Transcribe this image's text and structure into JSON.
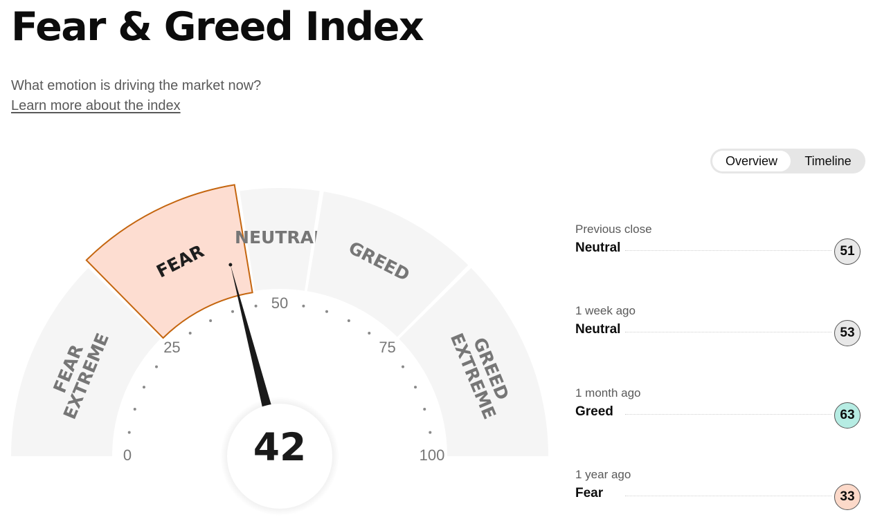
{
  "header": {
    "title": "Fear & Greed Index",
    "subtitle": "What emotion is driving the market now?",
    "learn_more": "Learn more about the index"
  },
  "tabs": [
    {
      "label": "Overview",
      "active": true
    },
    {
      "label": "Timeline",
      "active": false
    }
  ],
  "gauge": {
    "value": 42,
    "value_label": "42",
    "current_rating": "FEAR",
    "min": 0,
    "max": 100,
    "tick_labels": [
      "0",
      "25",
      "50",
      "75",
      "100"
    ],
    "segments": [
      {
        "label_lines": [
          "EXTREME",
          "FEAR"
        ],
        "from": 0,
        "to": 25
      },
      {
        "label_lines": [
          "FEAR"
        ],
        "from": 25,
        "to": 45
      },
      {
        "label_lines": [
          "NEUTRAL"
        ],
        "from": 45,
        "to": 55
      },
      {
        "label_lines": [
          "GREED"
        ],
        "from": 55,
        "to": 75
      },
      {
        "label_lines": [
          "EXTREME",
          "GREED"
        ],
        "from": 75,
        "to": 100
      }
    ],
    "colors": {
      "segment": "#f5f5f5",
      "active_fill": "#fdddd1",
      "active_stroke": "#c4650e",
      "label": "#767676",
      "active_label": "#1e1e1e",
      "needle": "#1a1a1a",
      "tick_dot": "#8a8a8a",
      "tick_label": "#777777"
    }
  },
  "history": [
    {
      "label": "Previous close",
      "rating": "Neutral",
      "value": "51",
      "color": "#e8e8e8"
    },
    {
      "label": "1 week ago",
      "rating": "Neutral",
      "value": "53",
      "color": "#e8e8e8"
    },
    {
      "label": "1 month ago",
      "rating": "Greed",
      "value": "63",
      "color": "#b6ece3"
    },
    {
      "label": "1 year ago",
      "rating": "Fear",
      "value": "33",
      "color": "#fcd9c9"
    }
  ]
}
